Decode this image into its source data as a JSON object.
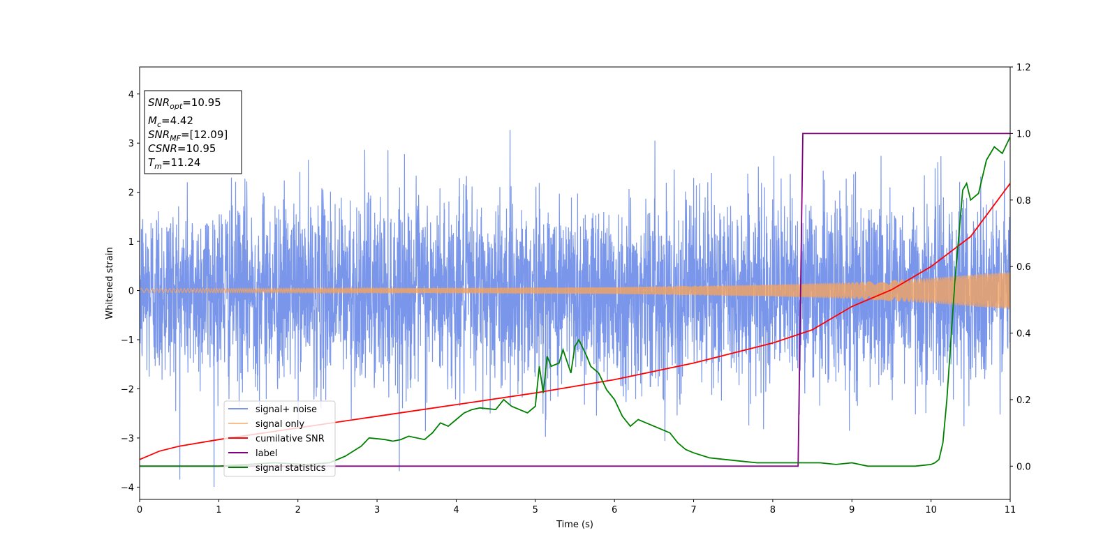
{
  "chart_data": {
    "type": "line",
    "xlabel": "Time (s)",
    "ylabel": "Whitened strain",
    "xlim": [
      0,
      11
    ],
    "ylim": [
      -4.25,
      4.55
    ],
    "y2lim": [
      -0.1,
      1.2
    ],
    "grid": false,
    "legend_position": "lower-left",
    "x_ticks": [
      "0",
      "1",
      "2",
      "3",
      "4",
      "5",
      "6",
      "7",
      "8",
      "9",
      "10",
      "11"
    ],
    "y_ticks": [
      "−4",
      "−3",
      "−2",
      "−1",
      "0",
      "1",
      "2",
      "3",
      "4"
    ],
    "y2_ticks": [
      "0.0",
      "0.2",
      "0.4",
      "0.6",
      "0.8",
      "1.0",
      "1.2"
    ],
    "info_box": {
      "snr_opt": {
        "name": "SNR",
        "sub": "opt",
        "value": "=10.95"
      },
      "mc": {
        "name": "M",
        "sub": "c",
        "value": "=4.42"
      },
      "snr_mf": {
        "name": "SNR",
        "sub": "MF",
        "value": "=[12.09]"
      },
      "csnr": {
        "name": "CSNR",
        "value": "=10.95"
      },
      "tm": {
        "name": "T",
        "sub": "m",
        "value": "=11.24"
      }
    },
    "series": [
      {
        "name": "signal+ noise",
        "color": "#4169e1",
        "description_axis": "left",
        "noise_envelope": {
          "typical_abs": 2.0,
          "peak_abs": 4.1
        }
      },
      {
        "name": "signal only",
        "color": "#f4a460",
        "axis": "left",
        "amplitude_x": [
          0,
          2,
          4,
          6,
          8,
          9,
          10,
          11
        ],
        "amplitude_y": [
          0.04,
          0.045,
          0.05,
          0.07,
          0.12,
          0.17,
          0.26,
          0.38
        ]
      },
      {
        "name": "cumilative SNR",
        "color": "#ff0000",
        "axis": "right",
        "x": [
          0,
          0.25,
          0.5,
          1,
          2,
          3,
          4,
          5,
          6,
          7,
          8,
          8.5,
          9,
          9.5,
          10,
          10.5,
          11
        ],
        "y": [
          0.02,
          0.045,
          0.06,
          0.08,
          0.115,
          0.15,
          0.185,
          0.22,
          0.26,
          0.31,
          0.37,
          0.41,
          0.48,
          0.53,
          0.6,
          0.69,
          0.85
        ]
      },
      {
        "name": "label",
        "color": "#800080",
        "axis": "right",
        "x": [
          0,
          8.32,
          8.38,
          11
        ],
        "y": [
          0,
          0,
          1,
          1
        ]
      },
      {
        "name": "signal statistics",
        "color": "#008000",
        "axis": "right",
        "x": [
          0,
          1,
          1.7,
          2.1,
          2.4,
          2.6,
          2.8,
          2.9,
          3.1,
          3.2,
          3.3,
          3.4,
          3.6,
          3.7,
          3.8,
          3.9,
          4.0,
          4.1,
          4.2,
          4.3,
          4.5,
          4.6,
          4.7,
          4.8,
          4.9,
          5.0,
          5.05,
          5.1,
          5.15,
          5.2,
          5.3,
          5.35,
          5.45,
          5.5,
          5.55,
          5.65,
          5.7,
          5.8,
          5.9,
          6.0,
          6.1,
          6.2,
          6.3,
          6.4,
          6.5,
          6.7,
          6.8,
          6.9,
          7.0,
          7.2,
          7.4,
          7.6,
          7.8,
          8.0,
          8.2,
          8.4,
          8.6,
          8.8,
          9.0,
          9.2,
          9.4,
          9.6,
          9.8,
          10.0,
          10.05,
          10.1,
          10.15,
          10.2,
          10.3,
          10.4,
          10.45,
          10.5,
          10.6,
          10.7,
          10.8,
          10.9,
          11.0
        ],
        "y": [
          0.0,
          0.0,
          0.01,
          0.005,
          0.01,
          0.03,
          0.06,
          0.085,
          0.08,
          0.075,
          0.08,
          0.09,
          0.08,
          0.1,
          0.13,
          0.12,
          0.14,
          0.16,
          0.17,
          0.175,
          0.17,
          0.2,
          0.18,
          0.17,
          0.16,
          0.18,
          0.3,
          0.22,
          0.33,
          0.3,
          0.31,
          0.35,
          0.28,
          0.36,
          0.38,
          0.33,
          0.3,
          0.28,
          0.23,
          0.2,
          0.15,
          0.12,
          0.14,
          0.13,
          0.12,
          0.1,
          0.07,
          0.05,
          0.04,
          0.025,
          0.02,
          0.015,
          0.01,
          0.01,
          0.01,
          0.01,
          0.01,
          0.005,
          0.01,
          0.0,
          0.0,
          0.0,
          0.0,
          0.005,
          0.01,
          0.02,
          0.07,
          0.2,
          0.55,
          0.83,
          0.85,
          0.8,
          0.82,
          0.92,
          0.96,
          0.94,
          0.99
        ]
      }
    ]
  }
}
